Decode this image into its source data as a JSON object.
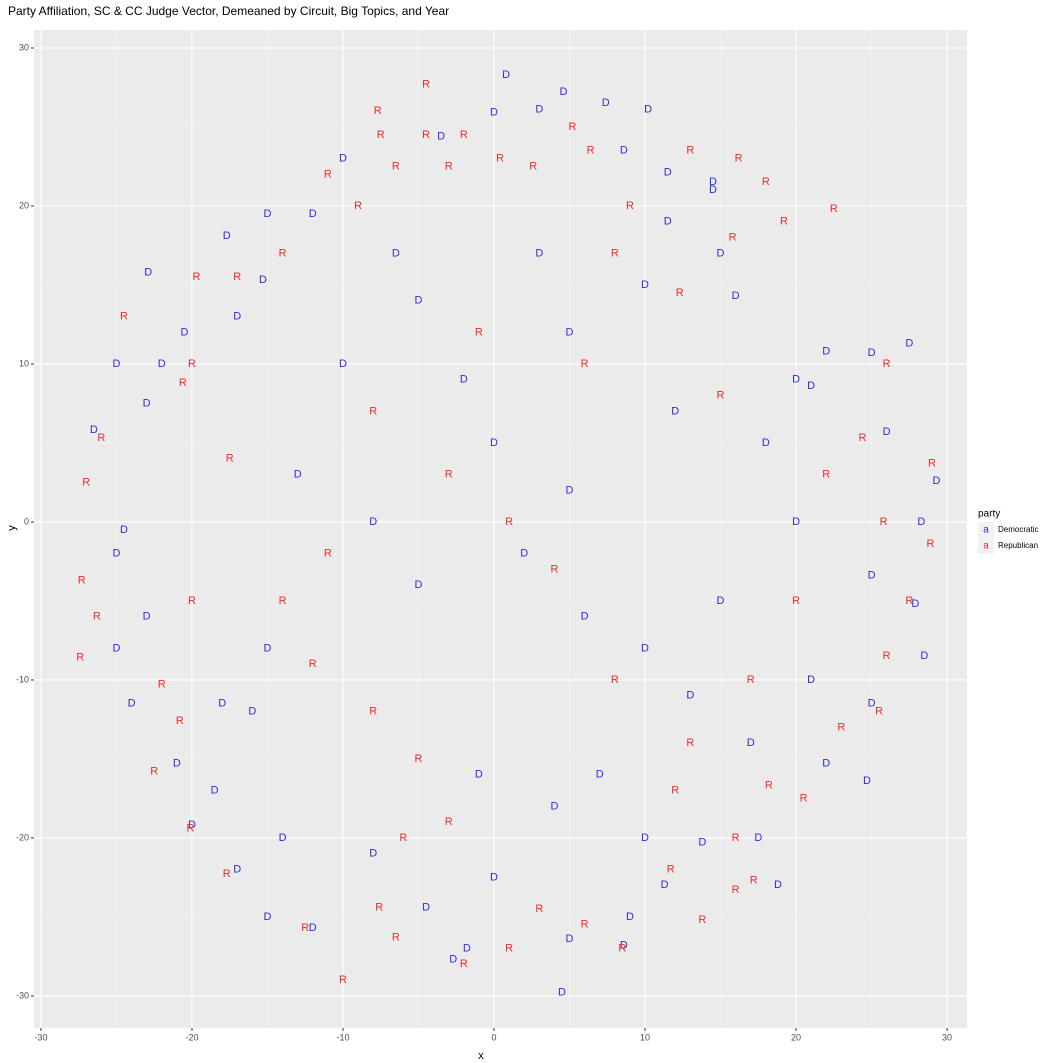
{
  "chart_data": {
    "type": "scatter",
    "title": "Party Affiliation, SC & CC Judge Vector, Demeaned by Circuit, Big Topics, and Year",
    "x_label": "x",
    "y_label": "y",
    "legend_title": "party",
    "legend_key": "a",
    "xlim": [
      -30.46,
      31.32
    ],
    "ylim": [
      -32.03,
      31.14
    ],
    "xticks": [
      -30,
      -20,
      -10,
      0,
      10,
      20,
      30
    ],
    "yticks": [
      -30,
      -20,
      -10,
      0,
      10,
      20,
      30
    ],
    "grid": true,
    "legend_position": "right",
    "series": [
      {
        "name": "Democratic",
        "label": "D",
        "color": "#2b2be0",
        "x": [
          0.8,
          4.6,
          7.4,
          10.2,
          0,
          3,
          -3.5,
          8.6,
          11.5,
          14.5,
          -10,
          -15,
          -12,
          -22.9,
          -17.7,
          -15.3,
          -17,
          -20.5,
          -22,
          -25,
          -23,
          -26.5,
          -24.5,
          -25,
          -23,
          -25,
          -24,
          -21,
          -20,
          -18.5,
          -17,
          -15,
          -12,
          -8,
          -4.5,
          -2.7,
          -1.8,
          4.5,
          5,
          8.6,
          9,
          11.3,
          13.8,
          17.5,
          18.8,
          22,
          24.7,
          25,
          28.5,
          27.9,
          25,
          28.3,
          29.3,
          26,
          27.5,
          25,
          22,
          21,
          20,
          15,
          16,
          14.5,
          11.5,
          10,
          5,
          -5,
          -10,
          -13,
          -8,
          -5,
          2,
          6,
          10,
          15,
          20,
          18,
          12,
          0,
          -2,
          5,
          -16,
          -15,
          7,
          -1,
          17,
          -18,
          3,
          -6.5,
          -14,
          4,
          0,
          13,
          21,
          10
        ],
        "values": [
          28.3,
          27.2,
          26.5,
          26.1,
          25.9,
          26.1,
          24.4,
          23.5,
          22.1,
          21,
          23,
          19.5,
          19.5,
          15.8,
          18.1,
          15.3,
          13,
          12,
          10,
          10,
          7.5,
          5.8,
          -0.5,
          -2,
          -6,
          -8,
          -11.5,
          -15.3,
          -19.2,
          -17,
          -22,
          -25,
          -25.7,
          -21,
          -24.4,
          -27.7,
          -27,
          -29.8,
          -26.4,
          -26.8,
          -25,
          -23,
          -20.3,
          -20,
          -23,
          -15.3,
          -16.4,
          -11.5,
          -8.5,
          -5.2,
          -3.4,
          0,
          2.6,
          5.7,
          11.3,
          10.7,
          10.8,
          8.6,
          9,
          17,
          14.3,
          21.5,
          19,
          15,
          12,
          14,
          10,
          3,
          0,
          -4,
          -2,
          -6,
          -8,
          -5,
          0,
          5,
          7,
          5,
          9,
          2,
          -12,
          -8,
          -16,
          -16,
          -14,
          -11.5,
          17,
          17,
          -20,
          -18,
          -22.5,
          -11,
          -10,
          -20
        ]
      },
      {
        "name": "Republican",
        "label": "R",
        "color": "#ee2a2a",
        "x": [
          -4.5,
          -7.5,
          -4.5,
          -7.7,
          5.2,
          6.4,
          -11,
          -3,
          13,
          16.2,
          -9,
          -14,
          -17,
          -19.7,
          -24.5,
          -20,
          -27,
          -26,
          -27.3,
          -26.3,
          -27.4,
          -22,
          -20.8,
          -22.5,
          -20.1,
          -17.7,
          -12.5,
          -10,
          -7.6,
          -6.5,
          -2,
          1,
          3,
          6,
          8.5,
          13.8,
          11.7,
          16,
          17.2,
          18.2,
          20.5,
          23,
          25.5,
          27.5,
          26,
          28.9,
          25.8,
          29,
          24.4,
          26,
          22.5,
          19.2,
          18,
          15.8,
          12.3,
          9,
          2.6,
          0.4,
          -2,
          -6.5,
          8,
          -8,
          -3,
          1,
          4,
          8,
          13,
          -8,
          -12,
          -5,
          -3,
          12,
          17,
          20,
          22,
          15,
          6,
          -1,
          -11,
          -14,
          16,
          -6,
          -20.6,
          -17.5,
          -20
        ],
        "values": [
          27.7,
          24.5,
          24.5,
          26,
          25,
          23.5,
          22,
          22.5,
          23.5,
          23,
          20,
          17,
          15.5,
          15.5,
          13,
          10,
          2.5,
          5.3,
          -3.7,
          -6,
          -8.6,
          -10.3,
          -12.6,
          -15.8,
          -19.4,
          -22.3,
          -25.7,
          -29,
          -24.4,
          -26.3,
          -28,
          -27,
          -24.5,
          -25.5,
          -27,
          -25.2,
          -22,
          -23.3,
          -22.7,
          -16.7,
          -17.5,
          -13,
          -12,
          -5,
          -8.5,
          -1.4,
          0,
          3.7,
          5.3,
          10,
          19.8,
          19,
          21.5,
          18,
          14.5,
          20,
          22.5,
          23,
          24.5,
          22.5,
          17,
          7,
          3,
          0,
          -3,
          -10,
          -14,
          -12,
          -9,
          -15,
          -19,
          -17,
          -10,
          -5,
          3,
          8,
          10,
          12,
          -2,
          -5,
          -20,
          -20,
          8.8,
          4,
          -5
        ]
      }
    ]
  }
}
